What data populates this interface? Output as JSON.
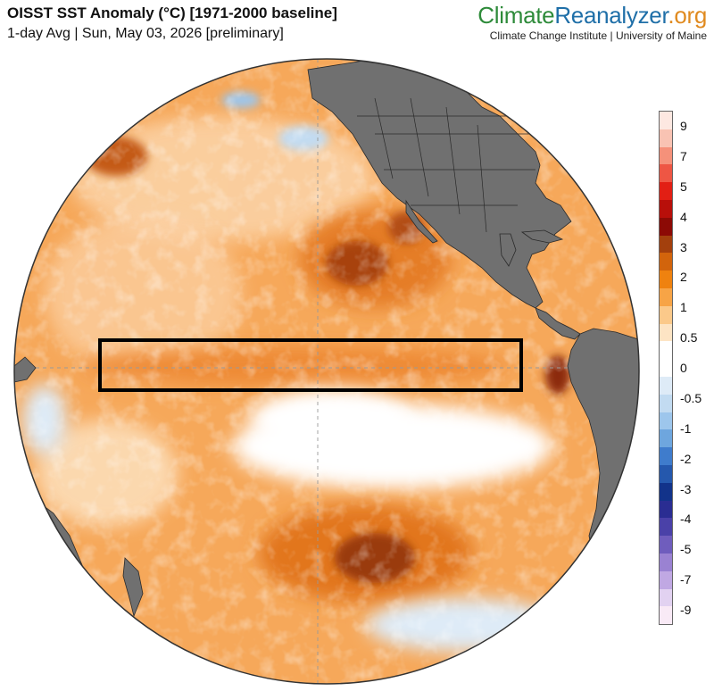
{
  "header": {
    "title": "OISST SST Anomaly (°C) [1971-2000 baseline]",
    "subtitle": "1-day Avg | Sun, May 03, 2026 [preliminary]"
  },
  "brand": {
    "logo_part1": "Climate",
    "logo_part2": "Reanalyzer",
    "logo_part3": ".org",
    "credit": "Climate Change Institute | University of Maine"
  },
  "map": {
    "projection": "orthographic",
    "view_center": "central Pacific Ocean",
    "highlight_region": "Niño 3.4 box (equatorial Pacific)",
    "colors": {
      "land": "#707070",
      "border": "#2a2a2a",
      "graticule": "#9a9a9a",
      "box": "#000000"
    }
  },
  "legend": {
    "ticks": [
      "9",
      "7",
      "5",
      "4",
      "3",
      "2",
      "1",
      "0.5",
      "0",
      "-0.5",
      "-1",
      "-2",
      "-3",
      "-4",
      "-5",
      "-7",
      "-9"
    ],
    "colors": [
      "#fde8e1",
      "#f9c3b3",
      "#f5917a",
      "#ee5644",
      "#e21f14",
      "#b80f0a",
      "#8c0a05",
      "#a3400d",
      "#d2640c",
      "#ef820f",
      "#f7a446",
      "#fbc98a",
      "#fde4c4",
      "#ffffff",
      "#ffffff",
      "#deebf7",
      "#c2dbf1",
      "#9dc6ec",
      "#6ea6de",
      "#3f7ccc",
      "#2558ad",
      "#12338a",
      "#2a2d92",
      "#4a41a8",
      "#6f5dbd",
      "#9a82d2",
      "#c0a8e3",
      "#e2d2f1",
      "#f9eaf6"
    ]
  }
}
